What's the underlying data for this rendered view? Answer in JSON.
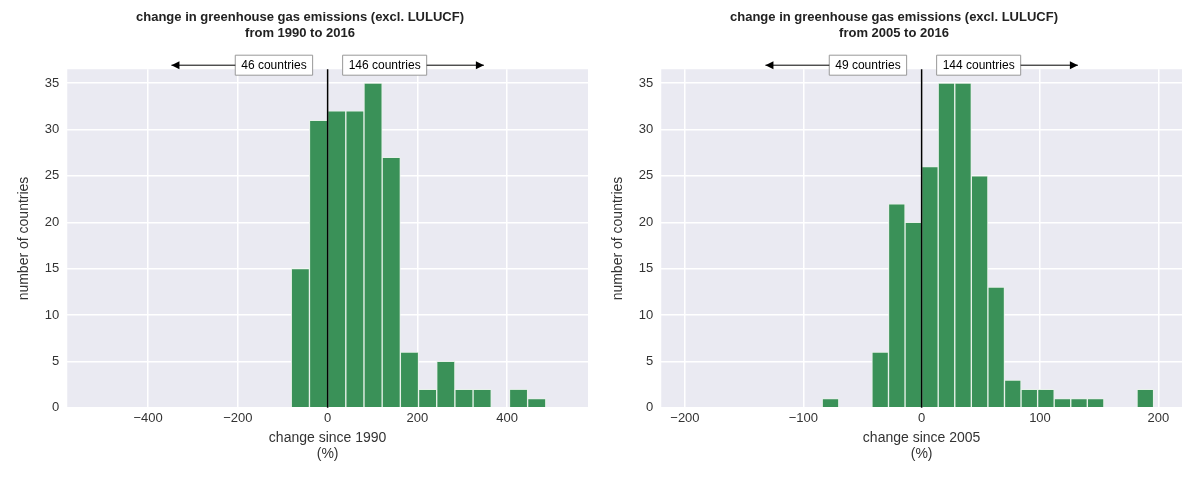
{
  "chart_data": [
    {
      "type": "histogram",
      "title": "change in greenhouse gas emissions (excl. LULUCF)\nfrom 1990 to 2016",
      "xlabel": "change since 1990\n(%)",
      "ylabel": "number of countries",
      "bins": [
        -81,
        -40.5,
        0,
        40.5,
        81,
        121.5,
        162,
        202.5,
        243,
        283.5,
        324,
        364.5,
        405,
        445.5,
        486
      ],
      "values": [
        15,
        31,
        32,
        32,
        35,
        27,
        6,
        2,
        5,
        2,
        2,
        0,
        2,
        1
      ],
      "color": "#3a9158",
      "xlim": [
        -580,
        580
      ],
      "xticks": [
        -400,
        -200,
        0,
        200,
        400
      ],
      "ylim": [
        0,
        36.5
      ],
      "yticks": [
        0,
        5,
        10,
        15,
        20,
        25,
        30,
        35
      ],
      "grid": true,
      "ref_lines": [
        {
          "axis": "x",
          "value": 0,
          "color": "#000000"
        }
      ],
      "annotations": [
        "46 countries",
        "146 countries"
      ]
    },
    {
      "type": "histogram",
      "title": "change in greenhouse gas emissions (excl. LULUCF)\nfrom 2005 to 2016",
      "xlabel": "change since 2005\n(%)",
      "ylabel": "number of countries",
      "bins": [
        -84,
        -70,
        -56,
        -42,
        -28,
        -14,
        0,
        14,
        28,
        42,
        56,
        70,
        84,
        98,
        112,
        126,
        140,
        154,
        168,
        182,
        196
      ],
      "values": [
        1,
        0,
        0,
        6,
        22,
        20,
        26,
        35,
        35,
        25,
        13,
        3,
        2,
        2,
        1,
        1,
        1,
        0,
        0,
        2
      ],
      "color": "#3a9158",
      "xlim": [
        -220,
        220
      ],
      "xticks": [
        -200,
        -100,
        0,
        100,
        200
      ],
      "ylim": [
        0,
        36.5
      ],
      "yticks": [
        0,
        5,
        10,
        15,
        20,
        25,
        30,
        35
      ],
      "grid": true,
      "ref_lines": [
        {
          "axis": "x",
          "value": 0,
          "color": "#000000"
        }
      ],
      "annotations": [
        "49 countries",
        "144 countries"
      ]
    }
  ]
}
